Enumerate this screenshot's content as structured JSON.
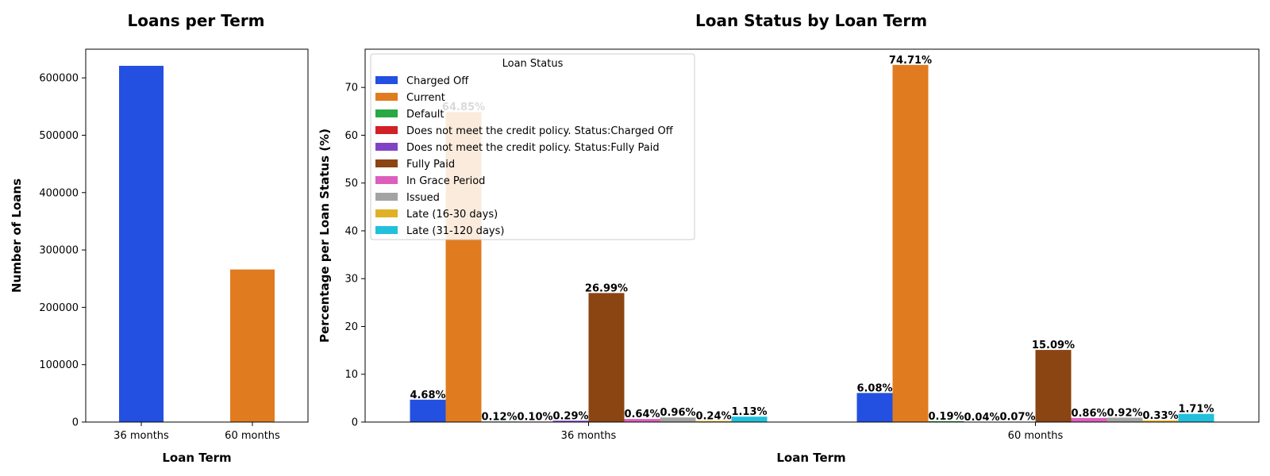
{
  "chart_data": [
    {
      "type": "bar",
      "title": "Loans per Term",
      "xlabel": "Loan Term",
      "ylabel": "Number of Loans",
      "categories": [
        "36 months",
        "60 months"
      ],
      "values": [
        621000,
        266000
      ],
      "colors": [
        "#2350e0",
        "#e07c1f"
      ],
      "ylim": [
        0,
        650000
      ],
      "yticks": [
        0,
        100000,
        200000,
        300000,
        400000,
        500000,
        600000
      ],
      "ytick_labels": [
        "0",
        "100000",
        "200000",
        "300000",
        "400000",
        "500000",
        "600000"
      ],
      "grid": false
    },
    {
      "type": "bar",
      "title": "Loan Status by Loan Term",
      "xlabel": "Loan Term",
      "ylabel": "Percentage per Loan Status (%)",
      "categories": [
        "36 months",
        "60 months"
      ],
      "ylim": [
        0,
        78
      ],
      "yticks": [
        0,
        10,
        20,
        30,
        40,
        50,
        60,
        70
      ],
      "ytick_labels": [
        "0",
        "10",
        "20",
        "30",
        "40",
        "50",
        "60",
        "70"
      ],
      "grid": false,
      "legend_title": "Loan Status",
      "legend_position": "upper-left",
      "series": [
        {
          "name": "Charged Off",
          "color": "#2350e0",
          "values": [
            4.68,
            6.08
          ],
          "labels": [
            "4.68%",
            "6.08%"
          ]
        },
        {
          "name": "Current",
          "color": "#e07c1f",
          "values": [
            64.85,
            74.71
          ],
          "labels": [
            "64.85%",
            "74.71%"
          ]
        },
        {
          "name": "Default",
          "color": "#2aa843",
          "values": [
            0.12,
            0.19
          ],
          "labels": [
            "0.12%",
            "0.19%"
          ]
        },
        {
          "name": "Does not meet the credit policy. Status:Charged Off",
          "color": "#d02127",
          "values": [
            0.1,
            0.04
          ],
          "labels": [
            "0.10%",
            "0.04%"
          ]
        },
        {
          "name": "Does not meet the credit policy. Status:Fully Paid",
          "color": "#8143c6",
          "values": [
            0.29,
            0.07
          ],
          "labels": [
            "0.29%",
            "0.07%"
          ]
        },
        {
          "name": "Fully Paid",
          "color": "#8b4513",
          "values": [
            26.99,
            15.09
          ],
          "labels": [
            "26.99%",
            "15.09%"
          ]
        },
        {
          "name": "In Grace Period",
          "color": "#dc5fbd",
          "values": [
            0.64,
            0.86
          ],
          "labels": [
            "0.64%",
            "0.86%"
          ]
        },
        {
          "name": "Issued",
          "color": "#a3a3a3",
          "values": [
            0.96,
            0.92
          ],
          "labels": [
            "0.96%",
            "0.92%"
          ]
        },
        {
          "name": "Late (16-30 days)",
          "color": "#e0b025",
          "values": [
            0.24,
            0.33
          ],
          "labels": [
            "0.24%",
            "0.33%"
          ]
        },
        {
          "name": "Late (31-120 days)",
          "color": "#22c0dd",
          "values": [
            1.13,
            1.71
          ],
          "labels": [
            "1.13%",
            "1.71%"
          ]
        }
      ]
    }
  ]
}
